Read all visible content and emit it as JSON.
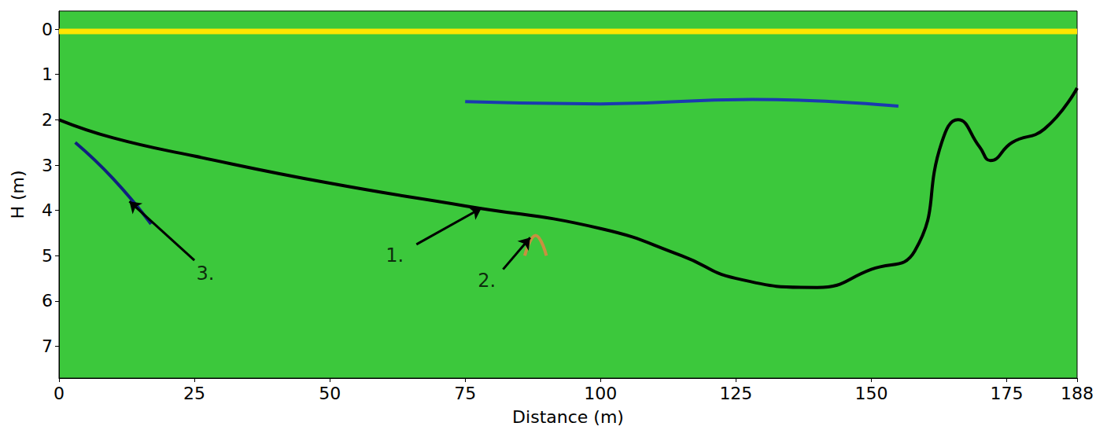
{
  "chart_data": {
    "type": "line",
    "x_label": "Distance (m)",
    "y_label": "H (m)",
    "xlim": [
      0,
      188
    ],
    "xticks": [
      0,
      25,
      50,
      75,
      100,
      125,
      150,
      175
    ],
    "ylim": [
      -0.4,
      7.7
    ],
    "yticks": [
      0,
      1,
      2,
      3,
      4,
      5,
      6,
      7
    ],
    "grid": false,
    "series": [
      {
        "color": "#ffe600",
        "x": [
          0,
          50,
          100,
          150,
          188
        ],
        "values": [
          0.05,
          0.05,
          0.05,
          0.05,
          0.05
        ]
      },
      {
        "color": "#1a3ab0",
        "x": [
          75,
          100,
          128,
          155
        ],
        "values": [
          1.6,
          1.65,
          1.55,
          1.7
        ]
      },
      {
        "color": "#000000",
        "x": [
          0,
          10,
          25,
          50,
          75,
          100,
          115,
          125,
          140,
          150,
          158,
          163,
          166,
          170,
          172,
          176,
          182,
          188
        ],
        "values": [
          2.0,
          2.4,
          2.8,
          3.4,
          3.9,
          4.4,
          5.0,
          5.5,
          5.7,
          5.3,
          4.9,
          2.5,
          2.0,
          2.6,
          2.9,
          2.5,
          2.2,
          1.3
        ]
      },
      {
        "color": "#102080",
        "x": [
          3,
          10,
          17
        ],
        "values": [
          2.5,
          3.3,
          4.3
        ]
      },
      {
        "color": "#c89040",
        "x": [
          86,
          88,
          90
        ],
        "values": [
          5.0,
          4.55,
          5.0
        ]
      }
    ],
    "annotations": [
      {
        "text": "1.",
        "x": 62,
        "y": 5.0,
        "arrow": [
          66,
          4.75,
          78,
          3.95
        ]
      },
      {
        "text": "2.",
        "x": 79,
        "y": 5.55,
        "arrow": [
          82,
          5.3,
          87,
          4.6
        ]
      },
      {
        "text": "3.",
        "x": 27,
        "y": 5.4,
        "arrow": [
          25,
          5.1,
          13,
          3.8
        ]
      }
    ]
  }
}
